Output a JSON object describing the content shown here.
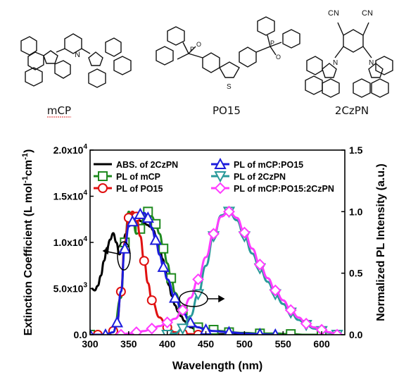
{
  "molecules": [
    {
      "name": "mCP"
    },
    {
      "name": "PO15"
    },
    {
      "name": "2CzPN"
    }
  ],
  "colors": {
    "abs": "#000000",
    "mcp": "#1f8a1f",
    "po15": "#e01010",
    "mcp_po15": "#1c1cdc",
    "czpn": "#2a9a9a",
    "blend": "#ff3cff"
  },
  "chart_data": {
    "type": "line",
    "xlabel": "Wavelength (nm)",
    "ylabel_left": "Extinction Coefficient (L mol",
    "ylabel_left_sup1": "-1",
    "ylabel_left_mid": "cm",
    "ylabel_left_sup2": "-1",
    "ylabel_left_end": ")",
    "ylabel_right": "Normalized PL Intensity (a.u.)",
    "xlim": [
      300,
      630
    ],
    "ylim_left": [
      0,
      20000
    ],
    "ylim_right": [
      0,
      1.5
    ],
    "x_ticks": [
      "300",
      "350",
      "400",
      "450",
      "500",
      "550",
      "600"
    ],
    "y_left_ticks": [
      {
        "value": 0,
        "mantissa": "0.0"
      },
      {
        "value": 5000,
        "mantissa": "5.0x10",
        "exp": "3"
      },
      {
        "value": 10000,
        "mantissa": "1.0x10",
        "exp": "4"
      },
      {
        "value": 15000,
        "mantissa": "1.5x10",
        "exp": "4"
      },
      {
        "value": 20000,
        "mantissa": "2.0x10",
        "exp": "4"
      }
    ],
    "y_right_ticks": [
      "0.0",
      "0.5",
      "1.0",
      "1.5"
    ],
    "legend": [
      {
        "key": "abs",
        "label": "ABS. of 2CzPN",
        "marker": "none"
      },
      {
        "key": "mcp_po15",
        "label": "PL of mCP:PO15",
        "marker": "triangle-up"
      },
      {
        "key": "mcp",
        "label": "PL of mCP",
        "marker": "square"
      },
      {
        "key": "czpn",
        "label": "PL of 2CzPN",
        "marker": "triangle-down"
      },
      {
        "key": "po15",
        "label": "PL of PO15",
        "marker": "circle"
      },
      {
        "key": "blend",
        "label": "PL of mCP:PO15:2CzPN",
        "marker": "diamond"
      }
    ],
    "series": [
      {
        "key": "abs",
        "axis": "left",
        "marker": "none",
        "x": [
          302,
          306,
          310,
          314,
          318,
          322,
          326,
          330,
          334,
          338,
          342,
          346,
          350,
          354,
          358,
          362,
          366,
          370,
          374,
          378,
          382,
          386,
          390,
          394,
          398,
          402,
          406,
          410,
          414,
          418,
          422,
          426,
          430,
          440,
          450,
          460,
          480,
          500
        ],
        "y": [
          5000,
          4800,
          5300,
          6400,
          8000,
          9400,
          10300,
          11000,
          10000,
          8700,
          9300,
          10900,
          12300,
          13000,
          12800,
          12500,
          12300,
          12100,
          11900,
          11700,
          11300,
          10500,
          9500,
          8200,
          6800,
          5400,
          4200,
          3200,
          2500,
          2000,
          1500,
          1100,
          800,
          400,
          200,
          80,
          30,
          0
        ]
      },
      {
        "key": "mcp",
        "axis": "right",
        "marker": "square",
        "x": [
          300,
          320,
          330,
          340,
          345,
          350,
          355,
          360,
          365,
          370,
          375,
          380,
          385,
          390,
          395,
          400,
          405,
          410,
          420,
          430,
          440,
          450,
          460,
          470,
          480,
          500,
          520,
          540,
          560,
          580,
          600
        ],
        "y": [
          0,
          0,
          0,
          0.3,
          0.75,
          1.0,
          0.95,
          0.82,
          0.86,
          0.95,
          1.0,
          0.96,
          0.9,
          0.82,
          0.7,
          0.58,
          0.46,
          0.34,
          0.2,
          0.1,
          0.06,
          0.05,
          0.04,
          0.03,
          0.02,
          0.015,
          0.01,
          0.01,
          0.005,
          0.0,
          0.0
        ]
      },
      {
        "key": "po15",
        "axis": "right",
        "marker": "circle",
        "x": [
          310,
          320,
          330,
          335,
          340,
          345,
          350,
          355,
          360,
          365,
          370,
          375,
          380,
          390,
          400,
          410,
          420,
          430,
          440
        ],
        "y": [
          0,
          0,
          0.03,
          0.1,
          0.35,
          0.75,
          0.95,
          1.0,
          0.96,
          0.8,
          0.6,
          0.42,
          0.28,
          0.14,
          0.06,
          0.02,
          0.01,
          0.005,
          0
        ]
      },
      {
        "key": "mcp_po15",
        "axis": "right",
        "marker": "triangle-up",
        "x": [
          300,
          310,
          320,
          330,
          335,
          340,
          345,
          350,
          355,
          360,
          365,
          370,
          375,
          380,
          385,
          390,
          395,
          400,
          410,
          420,
          430,
          440,
          450,
          460,
          480,
          500,
          520,
          540
        ],
        "y": [
          0,
          0,
          0,
          0.02,
          0.1,
          0.35,
          0.7,
          0.88,
          0.92,
          0.95,
          0.98,
          0.99,
          0.95,
          0.87,
          0.77,
          0.65,
          0.55,
          0.45,
          0.3,
          0.18,
          0.1,
          0.06,
          0.04,
          0.03,
          0.02,
          0.01,
          0.005,
          0
        ]
      },
      {
        "key": "czpn",
        "axis": "right",
        "marker": "triangle-down",
        "x": [
          400,
          410,
          420,
          430,
          440,
          450,
          460,
          470,
          480,
          490,
          500,
          510,
          520,
          530,
          540,
          550,
          560,
          570,
          580,
          590,
          600,
          610,
          620
        ],
        "y": [
          0,
          0.01,
          0.05,
          0.15,
          0.33,
          0.56,
          0.8,
          0.97,
          1.0,
          0.93,
          0.8,
          0.66,
          0.54,
          0.43,
          0.33,
          0.25,
          0.18,
          0.12,
          0.08,
          0.05,
          0.03,
          0.015,
          0
        ]
      },
      {
        "key": "blend",
        "axis": "right",
        "marker": "diamond",
        "x": [
          340,
          350,
          360,
          370,
          380,
          390,
          400,
          410,
          420,
          430,
          440,
          450,
          460,
          470,
          480,
          490,
          500,
          510,
          520,
          530,
          540,
          550,
          560,
          570,
          580,
          590,
          600,
          610,
          620
        ],
        "y": [
          0,
          0.01,
          0.02,
          0.03,
          0.05,
          0.07,
          0.1,
          0.13,
          0.2,
          0.3,
          0.45,
          0.63,
          0.82,
          0.96,
          1.0,
          0.95,
          0.83,
          0.7,
          0.57,
          0.46,
          0.36,
          0.28,
          0.2,
          0.14,
          0.09,
          0.06,
          0.04,
          0.02,
          0
        ]
      }
    ]
  }
}
